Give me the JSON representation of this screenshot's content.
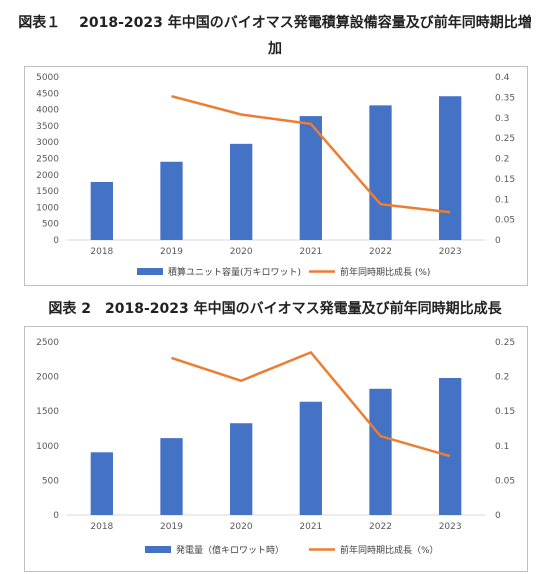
{
  "titles": {
    "chart1_line1": "図表１　 2018-2023 年中国のバイオマス発電積算設備容量及び前年同時期比増",
    "chart1_line2": "加",
    "chart2": "図表 2　2018-2023 年中国のバイオマス発電量及び前年同時期比成長"
  },
  "chart_data": [
    {
      "type": "bar",
      "title": "図表１　 2018-2023 年中国のバイオマス発電積算設備容量及び前年同時期比増加",
      "categories": [
        "2018",
        "2019",
        "2020",
        "2021",
        "2022",
        "2023"
      ],
      "series": [
        {
          "name": "積算ユニット容量(万キロワット)",
          "type": "bar",
          "axis": "left",
          "color": "#4472c4",
          "values": [
            1780,
            2400,
            2950,
            3800,
            4130,
            4410
          ]
        },
        {
          "name": "前年同時期比成長 (%)",
          "type": "line",
          "axis": "right",
          "color": "#ed7d31",
          "values": [
            null,
            0.353,
            0.308,
            0.285,
            0.088,
            0.068
          ]
        }
      ],
      "y_left": {
        "min": 0,
        "max": 5000,
        "ticks": [
          "0",
          "500",
          "1000",
          "1500",
          "2000",
          "2500",
          "3000",
          "3500",
          "4000",
          "4500",
          "5000"
        ]
      },
      "y_right": {
        "min": 0,
        "max": 0.4,
        "ticks": [
          "0",
          "0.05",
          "0.1",
          "0.15",
          "0.2",
          "0.25",
          "0.3",
          "0.35",
          "0.4"
        ]
      },
      "legend": "bottom",
      "grid": false
    },
    {
      "type": "bar",
      "title": "図表 2　2018-2023 年中国のバイオマス発電量及び前年同時期比成長",
      "categories": [
        "2018",
        "2019",
        "2020",
        "2021",
        "2022",
        "2023"
      ],
      "series": [
        {
          "name": "発電量（億キロワット時）",
          "type": "bar",
          "axis": "left",
          "color": "#4472c4",
          "values": [
            906,
            1111,
            1326,
            1637,
            1824,
            1980
          ]
        },
        {
          "name": "前年同時期比成長（%）",
          "type": "line",
          "axis": "right",
          "color": "#ed7d31",
          "values": [
            null,
            0.227,
            0.194,
            0.235,
            0.114,
            0.085
          ]
        }
      ],
      "y_left": {
        "min": 0,
        "max": 2500,
        "ticks": [
          "0",
          "500",
          "1000",
          "1500",
          "2000",
          "2500"
        ]
      },
      "y_right": {
        "min": 0,
        "max": 0.25,
        "ticks": [
          "0",
          "0.05",
          "0.1",
          "0.15",
          "0.2",
          "0.25"
        ]
      },
      "legend": "bottom",
      "grid": false
    }
  ]
}
